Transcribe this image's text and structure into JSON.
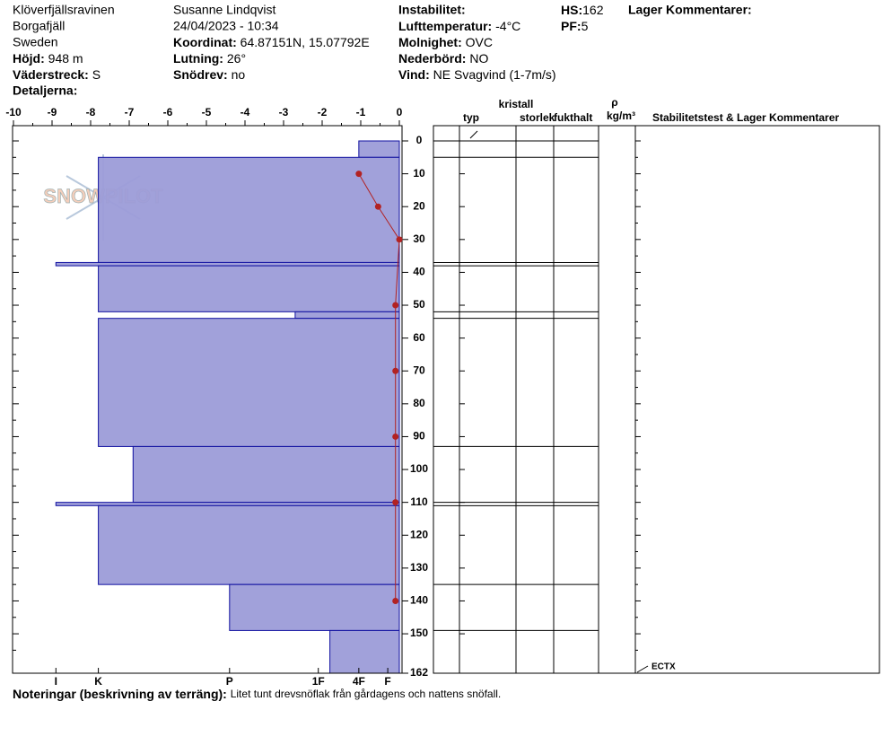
{
  "header": {
    "location": "Klöverfjällsravinen",
    "range": "Borgafjäll",
    "country": "Sweden",
    "elevation": {
      "label": "Höjd:",
      "value": "948 m"
    },
    "aspect": {
      "label": "Väderstreck:",
      "value": "S"
    },
    "details": {
      "label": "Detaljerna:"
    },
    "observer": "Susanne Lindqvist",
    "datetime": "24/04/2023 - 10:34",
    "coordinates": {
      "label": "Koordinat:",
      "value": "64.87151N, 15.07792E"
    },
    "slope": {
      "label": "Lutning:",
      "value": "26°"
    },
    "blowing_snow": {
      "label": "Snödrev:",
      "value": "no"
    },
    "instability": {
      "label": "Instabilitet:"
    },
    "air_temp": {
      "label": "Lufttemperatur:",
      "value": "-4°C"
    },
    "sky": {
      "label": "Molnighet:",
      "value": "OVC"
    },
    "precip": {
      "label": "Nederbörd:",
      "value": "NO"
    },
    "wind": {
      "label": "Vind:",
      "value": "NE Svagvind (1-7m/s)"
    },
    "hs": {
      "label": "HS:",
      "value": 162
    },
    "pf": {
      "label": "PF:",
      "value": 5
    },
    "layer_comments": "Lager Kommentarer:"
  },
  "chart_data": {
    "type": "snow-profile",
    "watermark": "SNOWPILOT",
    "xlim": [
      -10,
      0
    ],
    "xticks": [
      -10,
      -9,
      -8,
      -7,
      -6,
      -5,
      -4,
      -3,
      -2,
      -1,
      0
    ],
    "ylim": [
      0,
      162
    ],
    "yticks": [
      0,
      10,
      20,
      30,
      40,
      50,
      60,
      70,
      80,
      90,
      100,
      110,
      120,
      130,
      140,
      150,
      162
    ],
    "hardness_ticks": [
      {
        "value": -8.9,
        "label": "I"
      },
      {
        "value": -7.8,
        "label": "K"
      },
      {
        "value": -4.4,
        "label": "P"
      },
      {
        "value": -2.1,
        "label": "1F"
      },
      {
        "value": -1.05,
        "label": "4F"
      },
      {
        "value": -0.3,
        "label": "F"
      }
    ],
    "bar_color": "#9c9cd8",
    "bar_edge": "#1010a0",
    "layers": [
      {
        "top": 0,
        "bottom": 5,
        "hardness": -1.05
      },
      {
        "top": 5,
        "bottom": 37,
        "hardness": -7.8
      },
      {
        "top": 37,
        "bottom": 38,
        "hardness": -8.9
      },
      {
        "top": 38,
        "bottom": 52,
        "hardness": -7.8
      },
      {
        "top": 52,
        "bottom": 54,
        "hardness": -2.7
      },
      {
        "top": 54,
        "bottom": 93,
        "hardness": -7.8
      },
      {
        "top": 93,
        "bottom": 110,
        "hardness": -6.9
      },
      {
        "top": 110,
        "bottom": 111,
        "hardness": -8.9
      },
      {
        "top": 111,
        "bottom": 135,
        "hardness": -7.8
      },
      {
        "top": 135,
        "bottom": 149,
        "hardness": -4.4
      },
      {
        "top": 149,
        "bottom": 162,
        "hardness": -1.8
      }
    ],
    "temperature": {
      "color": "#b22222",
      "depth": [
        10,
        20,
        30,
        50,
        70,
        90,
        110,
        140
      ],
      "values": [
        -1.05,
        -0.55,
        0,
        -0.1,
        -0.1,
        -0.1,
        -0.1,
        -0.1
      ]
    },
    "table": {
      "crystal": "kristall",
      "type": "typ",
      "size": "storlek",
      "moisture": "fukthalt",
      "density": "ρ",
      "density_unit": "kg/m³",
      "comments": "Stabilitetstest & Lager Kommentarer"
    },
    "annotation": {
      "label": "ECTX",
      "depth": 162
    }
  },
  "notes": {
    "label": "Noteringar (beskrivning av terräng):",
    "text": "Litet tunt drevsnöflak från gårdagens och nattens snöfall."
  }
}
